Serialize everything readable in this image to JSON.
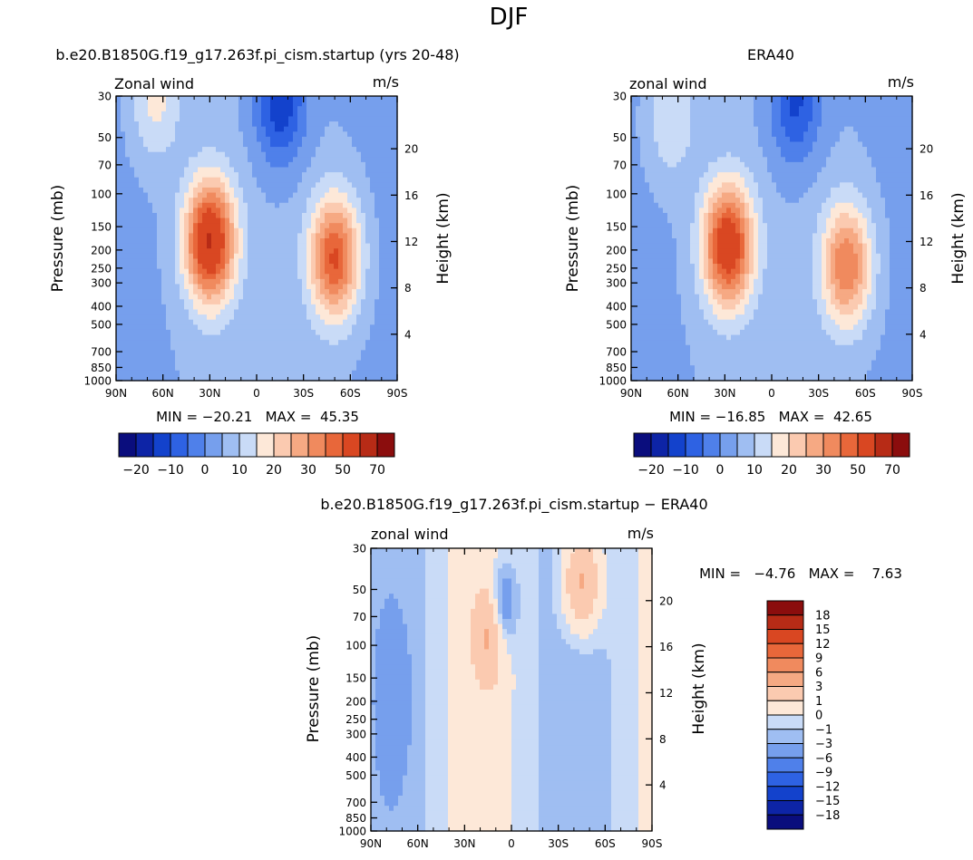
{
  "page_title": "DJF",
  "chart_data": [
    {
      "type": "heatmap",
      "id": "model",
      "title": "b.e20.B1850G.f19_g17.263f.pi_cism.startup (yrs 20-48)",
      "left_label": "Zonal wind",
      "right_label": "m/s",
      "ylabel": "Pressure (mb)",
      "y2label": "Height (km)",
      "x_ticks": [
        "90N",
        "60N",
        "30N",
        "0",
        "30S",
        "60S",
        "90S"
      ],
      "y_ticks": [
        "30",
        "50",
        "70",
        "100",
        "150",
        "200",
        "250",
        "300",
        "400",
        "500",
        "700",
        "850",
        "1000"
      ],
      "y2_ticks": [
        "20",
        "16",
        "12",
        "8",
        "4"
      ],
      "stats": "MIN = −20.21   MAX =  45.35",
      "min": -20.21,
      "max": 45.35,
      "colorbar_labels": [
        "−20",
        "−10",
        "0",
        "10",
        "20",
        "30",
        "50",
        "70"
      ],
      "jets": [
        {
          "lat": 30,
          "p": 180,
          "peak": 45
        },
        {
          "lat": -50,
          "p": 220,
          "peak": 36
        },
        {
          "lat": -15,
          "p": 32,
          "peak": -20
        },
        {
          "lat": 65,
          "p": 32,
          "peak": 12
        }
      ]
    },
    {
      "type": "heatmap",
      "id": "obs",
      "title": "ERA40",
      "left_label": "zonal wind",
      "right_label": "m/s",
      "ylabel": "Pressure (mb)",
      "y2label": "Height (km)",
      "x_ticks": [
        "90N",
        "60N",
        "30N",
        "0",
        "30S",
        "60S",
        "90S"
      ],
      "y_ticks": [
        "30",
        "50",
        "70",
        "100",
        "150",
        "200",
        "250",
        "300",
        "400",
        "500",
        "700",
        "850",
        "1000"
      ],
      "y2_ticks": [
        "20",
        "16",
        "12",
        "8",
        "4"
      ],
      "stats": "MIN = −16.85   MAX =  42.65",
      "min": -16.85,
      "max": 42.65,
      "colorbar_labels": [
        "−20",
        "−10",
        "0",
        "10",
        "20",
        "30",
        "50",
        "70"
      ],
      "jets": [
        {
          "lat": 28,
          "p": 190,
          "peak": 42
        },
        {
          "lat": -48,
          "p": 240,
          "peak": 30
        },
        {
          "lat": -15,
          "p": 32,
          "peak": -17
        },
        {
          "lat": 65,
          "p": 40,
          "peak": 10
        }
      ]
    },
    {
      "type": "heatmap",
      "id": "diff",
      "title": "b.e20.B1850G.f19_g17.263f.pi_cism.startup − ERA40",
      "left_label": "zonal wind",
      "right_label": "m/s",
      "ylabel": "Pressure (mb)",
      "y2label": "Height (km)",
      "x_ticks": [
        "90N",
        "60N",
        "30N",
        "0",
        "30S",
        "60S",
        "90S"
      ],
      "y_ticks": [
        "30",
        "50",
        "70",
        "100",
        "150",
        "200",
        "250",
        "300",
        "400",
        "500",
        "700",
        "850",
        "1000"
      ],
      "y2_ticks": [
        "20",
        "16",
        "12",
        "8",
        "4"
      ],
      "stats": "MIN =   −4.76   MAX =    7.63",
      "min": -4.76,
      "max": 7.63,
      "colorbar_labels": [
        "18",
        "15",
        "12",
        "9",
        "6",
        "3",
        "1",
        "0",
        "−1",
        "−3",
        "−6",
        "−9",
        "−12",
        "−15",
        "−18"
      ]
    }
  ],
  "colors": {
    "diverging": [
      "#0a0d7d",
      "#0d24a6",
      "#1342cc",
      "#2e62e3",
      "#4f80ea",
      "#769fed",
      "#9fbef2",
      "#c9dbf7",
      "#fde8d8",
      "#fbcab0",
      "#f6a983",
      "#f08a5e",
      "#e8673a",
      "#d94722",
      "#b72b16",
      "#8b0d0d"
    ]
  }
}
